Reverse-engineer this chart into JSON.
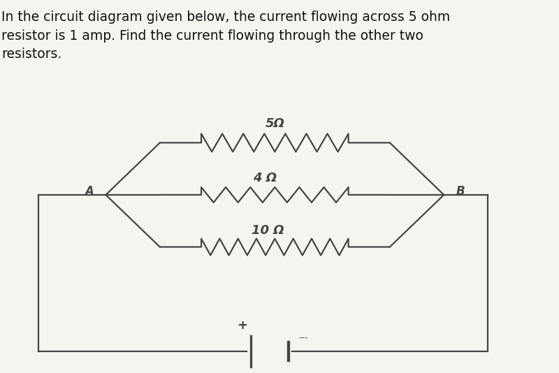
{
  "title_text": "In the circuit diagram given below, the current flowing across 5 ohm\nresistor is 1 amp. Find the current flowing through the other two\nresistors.",
  "title_fontsize": 13.5,
  "title_color": "#111111",
  "bg_color": "#f5f5f0",
  "line_color": "#444444",
  "line_width": 1.6,
  "label_5": "5Ω",
  "label_4": "4 Ω",
  "label_10": "10 Ω",
  "label_A": "A",
  "label_B": "B",
  "plus_label": "+",
  "minus_label": "---"
}
